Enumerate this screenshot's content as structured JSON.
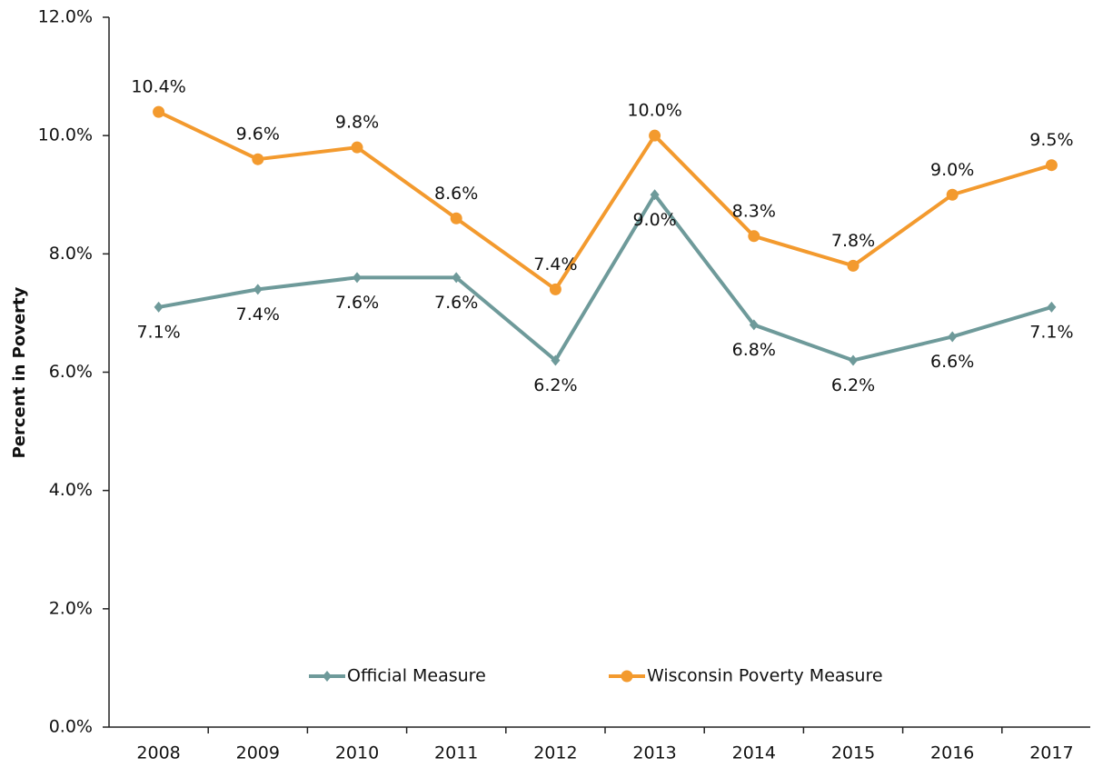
{
  "chart_data": {
    "type": "line",
    "y_label": "Percent in Poverty",
    "categories": [
      "2008",
      "2009",
      "2010",
      "2011",
      "2012",
      "2013",
      "2014",
      "2015",
      "2016",
      "2017"
    ],
    "series": [
      {
        "name": "Official Measure",
        "color": "#6e9a9a",
        "marker": "diamond",
        "values": [
          7.1,
          7.4,
          7.6,
          7.6,
          6.2,
          9.0,
          6.8,
          6.2,
          6.6,
          7.1
        ],
        "value_labels": [
          "7.1%",
          "7.4%",
          "7.6%",
          "7.6%",
          "6.2%",
          "9.0%",
          "6.8%",
          "6.2%",
          "6.6%",
          "7.1%"
        ]
      },
      {
        "name": "Wisconsin Poverty Measure",
        "color": "#f39a2e",
        "marker": "circle",
        "values": [
          10.4,
          9.6,
          9.8,
          8.6,
          7.4,
          10.0,
          8.3,
          7.8,
          9.0,
          9.5
        ],
        "value_labels": [
          "10.4%",
          "9.6%",
          "9.8%",
          "8.6%",
          "7.4%",
          "10.0%",
          "8.3%",
          "7.8%",
          "9.0%",
          "9.5%"
        ]
      }
    ],
    "ylim": [
      0,
      12
    ],
    "yticks": [
      {
        "value": 0,
        "label": "0.0%"
      },
      {
        "value": 2,
        "label": "2.0%"
      },
      {
        "value": 4,
        "label": "4.0%"
      },
      {
        "value": 6,
        "label": "6.0%"
      },
      {
        "value": 8,
        "label": "8.0%"
      },
      {
        "value": 10,
        "label": "10.0%"
      },
      {
        "value": 12,
        "label": "12.0%"
      }
    ],
    "grid": false,
    "legend": "bottom"
  }
}
